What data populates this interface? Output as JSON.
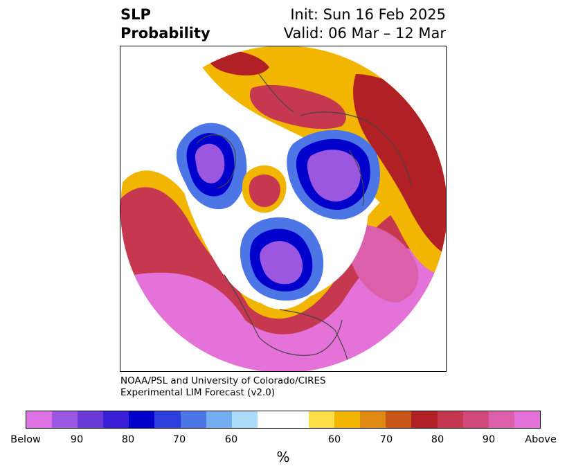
{
  "title": {
    "left_line1": "SLP",
    "left_line2": "Probability",
    "right_line1": "Init: Sun 16 Feb 2025",
    "right_line2": "Valid: 06 Mar – 12 Mar"
  },
  "credit": {
    "line1": "NOAA/PSL and University of Colorado/CIRES",
    "line2": "Experimental LIM Forecast (v2.0)"
  },
  "colorbar": {
    "colors": [
      "#df73e6",
      "#9b57e0",
      "#6b38d8",
      "#3a1fd6",
      "#0000cd",
      "#2a3fdc",
      "#4c75e6",
      "#73aef0",
      "#addcf8",
      "#ffffff",
      "#ffffff",
      "#fedf4a",
      "#f2b600",
      "#df8a12",
      "#c8561a",
      "#b02025",
      "#c53850",
      "#cf4a7a",
      "#dc5fab",
      "#e472d9"
    ],
    "ticks": [
      "Below",
      "90",
      "80",
      "70",
      "60",
      "60",
      "70",
      "80",
      "90",
      "Above"
    ],
    "unit": "%"
  },
  "map": {
    "projection": "north-polar-stereographic",
    "blobs": [
      {
        "name": "ocean-background",
        "color": "#ffffff"
      },
      {
        "name": "pacific-above-outer",
        "color": "#f2b600"
      },
      {
        "name": "pacific-above-mid",
        "color": "#c53850"
      },
      {
        "name": "pacific-above-core",
        "color": "#e472d9"
      },
      {
        "name": "atlantic-above-outer",
        "color": "#f2b600"
      },
      {
        "name": "atlantic-above-mid",
        "color": "#b02025"
      },
      {
        "name": "atlantic-above-core",
        "color": "#dc5fab"
      },
      {
        "name": "scandinavia-above",
        "color": "#c53850"
      },
      {
        "name": "siberia-above",
        "color": "#b02025"
      },
      {
        "name": "greenland-below-outer",
        "color": "#4c75e6"
      },
      {
        "name": "greenland-below-core",
        "color": "#9b57e0"
      },
      {
        "name": "kara-below-outer",
        "color": "#4c75e6"
      },
      {
        "name": "kara-below-core",
        "color": "#9b57e0"
      },
      {
        "name": "bering-below-outer",
        "color": "#4c75e6"
      },
      {
        "name": "bering-below-core",
        "color": "#9b57e0"
      },
      {
        "name": "arctic-above",
        "color": "#c53850"
      }
    ]
  }
}
